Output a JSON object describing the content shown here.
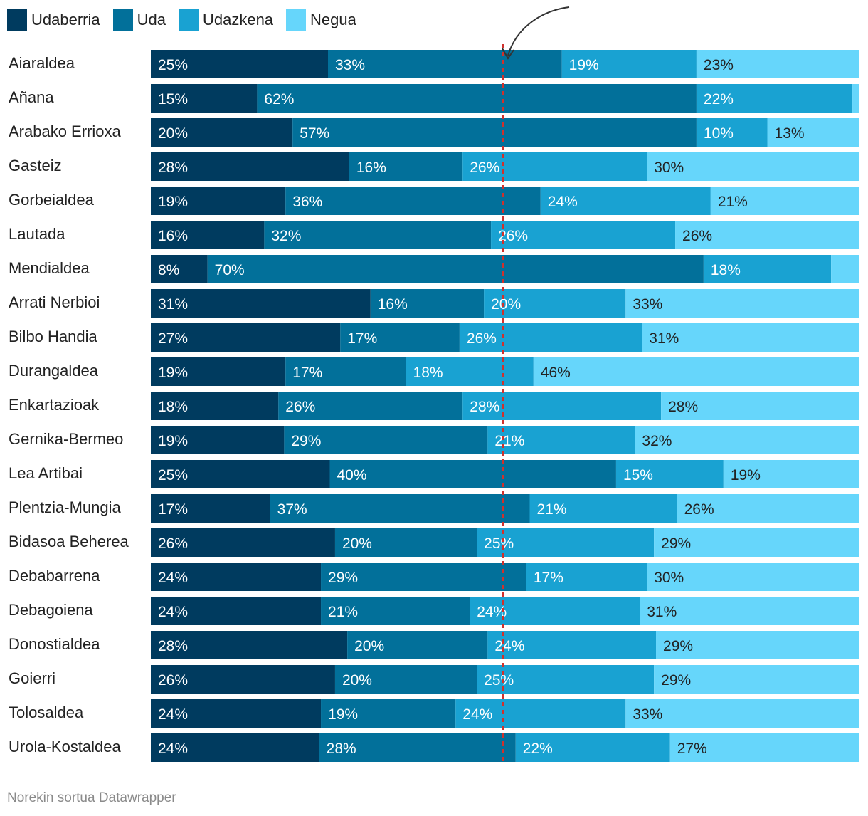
{
  "chart_data": {
    "type": "bar",
    "orientation": "horizontal",
    "stacked": true,
    "normalized": "percent",
    "categories": [
      "Aiaraldea",
      "Añana",
      "Arabako Errioxa",
      "Gasteiz",
      "Gorbeialdea",
      "Lautada",
      "Mendialdea",
      "Arrati Nerbioi",
      "Bilbo Handia",
      "Durangaldea",
      "Enkartazioak",
      "Gernika-Bermeo",
      "Lea Artibai",
      "Plentzia-Mungia",
      "Bidasoa Beherea",
      "Debabarrena",
      "Debagoiena",
      "Donostialdea",
      "Goierri",
      "Tolosaldea",
      "Urola-Kostaldea"
    ],
    "series": [
      {
        "name": "Udaberria",
        "color": "#003b5f",
        "label_color": "#ffffff",
        "values": [
          25,
          15,
          20,
          28,
          19,
          16,
          8,
          31,
          27,
          19,
          18,
          19,
          25,
          17,
          26,
          24,
          24,
          28,
          26,
          24,
          24
        ],
        "labels": [
          "25%",
          "15%",
          "20%",
          "28%",
          "19%",
          "16%",
          "8%",
          "31%",
          "27%",
          "19%",
          "18%",
          "19%",
          "25%",
          "17%",
          "26%",
          "24%",
          "24%",
          "28%",
          "26%",
          "24%",
          "24%"
        ]
      },
      {
        "name": "Uda",
        "color": "#02709a",
        "label_color": "#ffffff",
        "values": [
          33,
          62,
          57,
          16,
          36,
          32,
          70,
          16,
          17,
          17,
          26,
          29,
          40,
          37,
          20,
          29,
          21,
          20,
          20,
          19,
          28
        ],
        "labels": [
          "33%",
          "62%",
          "57%",
          "16%",
          "36%",
          "32%",
          "70%",
          "16%",
          "17%",
          "17%",
          "26%",
          "29%",
          "40%",
          "37%",
          "20%",
          "29%",
          "21%",
          "20%",
          "20%",
          "19%",
          "28%"
        ]
      },
      {
        "name": "Udazkena",
        "color": "#19a2d2",
        "label_color": "#ffffff",
        "values": [
          19,
          22,
          10,
          26,
          24,
          26,
          18,
          20,
          26,
          18,
          28,
          21,
          15,
          21,
          25,
          17,
          24,
          24,
          25,
          24,
          22
        ],
        "labels": [
          "19%",
          "22%",
          "10%",
          "26%",
          "24%",
          "26%",
          "18%",
          "20%",
          "26%",
          "18%",
          "28%",
          "21%",
          "15%",
          "21%",
          "25%",
          "17%",
          "24%",
          "24%",
          "25%",
          "24%",
          "22%"
        ]
      },
      {
        "name": "Negua",
        "color": "#66d6fb",
        "label_color": "#222222",
        "values": [
          23,
          1,
          13,
          30,
          21,
          26,
          4,
          33,
          31,
          46,
          28,
          32,
          19,
          26,
          29,
          30,
          31,
          29,
          29,
          33,
          27
        ],
        "labels": [
          "23%",
          "",
          "13%",
          "30%",
          "21%",
          "26%",
          "",
          "33%",
          "31%",
          "46%",
          "28%",
          "32%",
          "19%",
          "26%",
          "29%",
          "30%",
          "31%",
          "29%",
          "29%",
          "33%",
          "27%"
        ]
      }
    ],
    "xlim": [
      0,
      100
    ],
    "reference_line": {
      "value": 50,
      "color": "#d0312d",
      "style": "dotted"
    },
    "legend_position": "top-left",
    "grid": false
  },
  "footer_text": "Norekin sortua Datawrapper"
}
